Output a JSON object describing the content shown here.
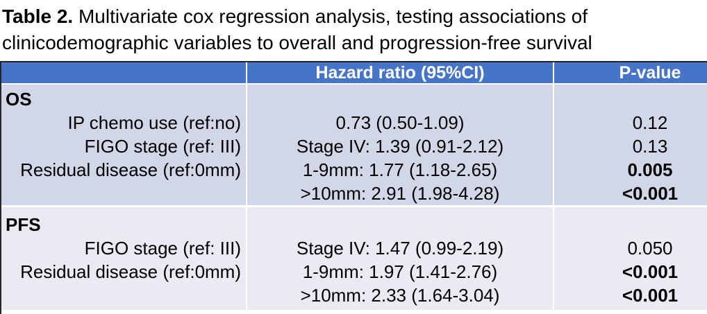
{
  "caption": {
    "prefix": "Table 2.",
    "line1": " Multivariate cox regression analysis, testing associations of",
    "line2": "clinicodemographic variables to overall and progression-free survival"
  },
  "table": {
    "headers": [
      "",
      "Hazard ratio (95%CI)",
      "P-value"
    ],
    "sections": [
      {
        "name": "OS",
        "rows": [
          {
            "label": "IP chemo use (ref:no)",
            "hazard_ratio": "0.73 (0.50-1.09)",
            "p_value": "0.12",
            "p_bold": false
          },
          {
            "label": "FIGO stage (ref: III)",
            "hazard_ratio": "Stage IV: 1.39 (0.91-2.12)",
            "p_value": "0.13",
            "p_bold": false
          },
          {
            "label": "Residual disease (ref:0mm)",
            "hazard_ratio": "1-9mm: 1.77 (1.18-2.65)",
            "p_value": "0.005",
            "p_bold": true
          },
          {
            "label": "",
            "hazard_ratio": ">10mm: 2.91 (1.98-4.28)",
            "p_value": "<0.001",
            "p_bold": true
          }
        ]
      },
      {
        "name": "PFS",
        "rows": [
          {
            "label": "FIGO stage (ref: III)",
            "hazard_ratio": "Stage IV: 1.47 (0.99-2.19)",
            "p_value": "0.050",
            "p_bold": false
          },
          {
            "label": "Residual disease (ref:0mm)",
            "hazard_ratio": "1-9mm: 1.97 (1.41-2.76)",
            "p_value": "<0.001",
            "p_bold": true
          },
          {
            "label": "",
            "hazard_ratio": ">10mm: 2.33 (1.64-3.04)",
            "p_value": "<0.001",
            "p_bold": true
          }
        ]
      }
    ]
  },
  "colors": {
    "header_bg": "#4674C6",
    "header_text": "#FFFFFF",
    "band_os": "#D2D7E8",
    "band_pfs": "#EAEAF3",
    "divider": "#FFFFFF",
    "edge": "#262626",
    "text": "#000000"
  }
}
